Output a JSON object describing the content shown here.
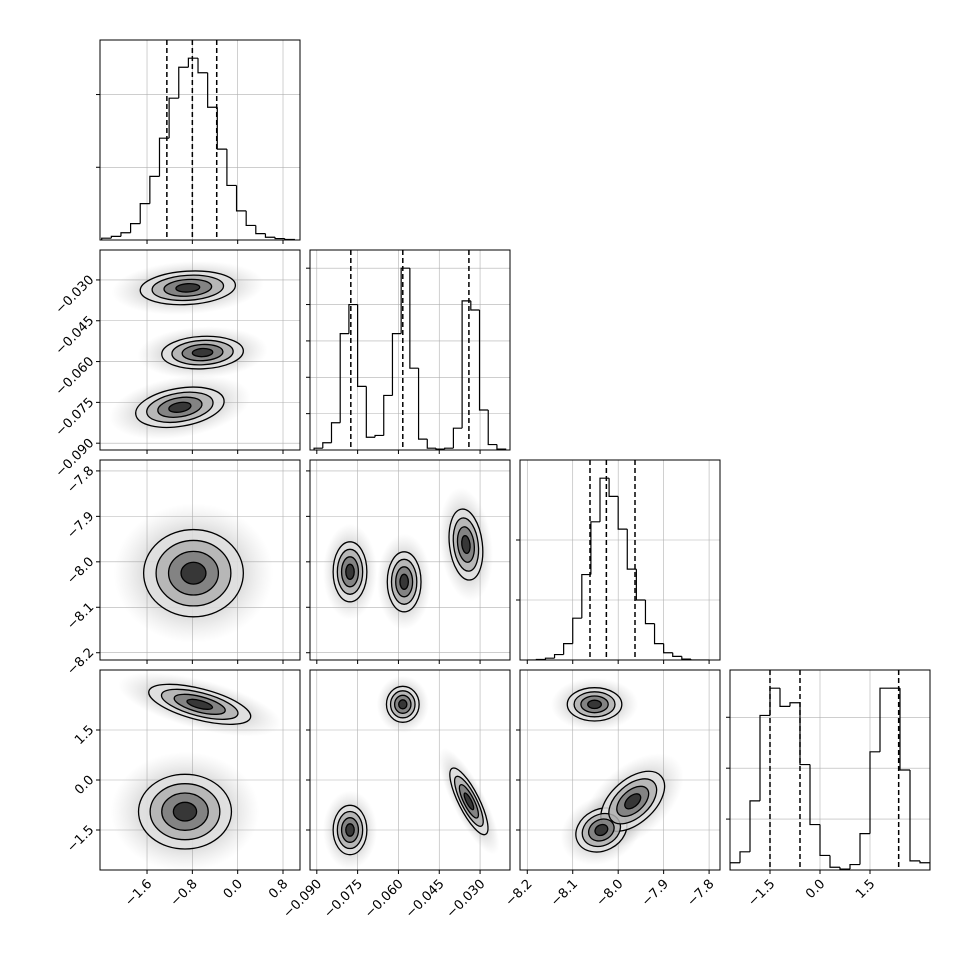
{
  "chart_data": {
    "type": "corner",
    "color": "#000000",
    "grid": true,
    "sigma_levels": [
      0.5,
      1,
      1.5,
      2
    ],
    "parameters": [
      {
        "lim": [
          -2.43,
          1.1
        ],
        "ticks": [
          {
            "value": -1.6,
            "label": "−1.6"
          },
          {
            "value": -0.8,
            "label": "−0.8"
          },
          {
            "value": 0,
            "label": "0.0"
          },
          0.8
        ]
      },
      {
        "lim": [
          -0.0925,
          -0.019
        ],
        "ticks": [
          {
            "value": -0.09,
            "label": "−0.090"
          },
          {
            "value": -0.075,
            "label": "−0.075"
          },
          {
            "value": -0.06,
            "label": "−0.060"
          },
          {
            "value": -0.045,
            "label": "−0.045"
          },
          {
            "value": -0.03,
            "label": "−0.030"
          }
        ]
      },
      {
        "lim": [
          -8.216,
          -7.776
        ],
        "ticks": [
          {
            "value": -8.2,
            "label": "−8.2"
          },
          {
            "value": -8.1,
            "label": "−8.1"
          },
          {
            "value": -8.0,
            "label": "−8.0"
          },
          {
            "value": -7.9,
            "label": "−7.9"
          },
          {
            "value": -7.8,
            "label": "−7.8"
          }
        ]
      },
      {
        "lim": [
          -2.7,
          3.3
        ],
        "ticks": [
          {
            "value": -1.5,
            "label": "−1.5"
          },
          {
            "value": 0,
            "label": "0.0"
          },
          1.5
        ]
      }
    ],
    "histograms": [
      {
        "bins": [
          -2.4,
          -2.23,
          -2.06,
          -1.89,
          -1.72,
          -1.55,
          -1.38,
          -1.21,
          -1.04,
          -0.87,
          -0.7,
          -0.53,
          -0.36,
          -0.19,
          -0.02,
          0.15,
          0.32,
          0.49,
          0.66,
          0.83,
          1.0
        ],
        "values": [
          0.01,
          0.02,
          0.04,
          0.09,
          0.2,
          0.35,
          0.56,
          0.78,
          0.95,
          1.0,
          0.92,
          0.73,
          0.5,
          0.3,
          0.16,
          0.08,
          0.035,
          0.015,
          0.008,
          0.003
        ],
        "ylim": [
          0,
          1.1
        ],
        "yticks": [
          0.4,
          0.8
        ],
        "quantiles": [
          -1.25,
          -0.8,
          -0.37
        ]
      },
      {
        "bins": [
          -0.091,
          -0.0878,
          -0.0846,
          -0.0814,
          -0.0782,
          -0.075,
          -0.0718,
          -0.0686,
          -0.0654,
          -0.0622,
          -0.059,
          -0.0558,
          -0.0526,
          -0.0494,
          -0.0462,
          -0.043,
          -0.0398,
          -0.0366,
          -0.0334,
          -0.0302,
          -0.027,
          -0.0238,
          -0.0206
        ],
        "values": [
          0.01,
          0.04,
          0.15,
          0.64,
          0.8,
          0.35,
          0.07,
          0.08,
          0.3,
          0.64,
          1.0,
          0.45,
          0.06,
          0.01,
          0.005,
          0.01,
          0.12,
          0.82,
          0.77,
          0.22,
          0.03,
          0.005
        ],
        "ylim": [
          0,
          1.1
        ],
        "yticks": [
          0.2,
          0.4,
          0.6,
          0.8,
          1.0
        ],
        "quantiles": [
          -0.0775,
          -0.0584,
          -0.0341
        ]
      },
      {
        "bins": [
          -8.2,
          -8.18,
          -8.16,
          -8.14,
          -8.12,
          -8.1,
          -8.08,
          -8.06,
          -8.04,
          -8.02,
          -8.0,
          -7.98,
          -7.96,
          -7.94,
          -7.92,
          -7.9,
          -7.88,
          -7.86,
          -7.84,
          -7.82,
          -7.8
        ],
        "values": [
          0.0,
          0.003,
          0.01,
          0.03,
          0.09,
          0.23,
          0.47,
          0.76,
          1.0,
          0.9,
          0.72,
          0.5,
          0.33,
          0.2,
          0.09,
          0.04,
          0.02,
          0.005,
          0.0,
          0.0
        ],
        "ylim": [
          0,
          1.1
        ],
        "yticks": [
          0.33,
          0.66
        ],
        "quantiles": [
          -8.062,
          -8.026,
          -7.963
        ]
      },
      {
        "bins": [
          -2.7,
          -2.4,
          -2.1,
          -1.8,
          -1.5,
          -1.2,
          -0.9,
          -0.6,
          -0.3,
          0.0,
          0.3,
          0.6,
          0.9,
          1.2,
          1.5,
          1.8,
          2.1,
          2.4,
          2.7,
          3.0,
          3.3
        ],
        "values": [
          0.04,
          0.1,
          0.38,
          0.85,
          1.0,
          0.9,
          0.92,
          0.58,
          0.25,
          0.08,
          0.015,
          0.005,
          0.03,
          0.2,
          0.65,
          1.0,
          1.0,
          0.55,
          0.05,
          0.04
        ],
        "ylim": [
          0,
          1.1
        ],
        "yticks": [
          0.28,
          0.56,
          0.84
        ],
        "quantiles": [
          -1.5,
          -0.6,
          2.36
        ]
      }
    ],
    "panels": [
      {
        "blobs": [
          {
            "x": -0.88,
            "y": -0.0329,
            "sx": 0.42,
            "sy": 0.0031,
            "rho": 0.15
          },
          {
            "x": -0.62,
            "y": -0.0567,
            "sx": 0.36,
            "sy": 0.003,
            "rho": 0.1
          },
          {
            "x": -1.02,
            "y": -0.0768,
            "sx": 0.39,
            "sy": 0.0037,
            "rho": 0.3
          }
        ]
      },
      {
        "blobs": [
          {
            "x": -0.78,
            "y": -8.025,
            "sx": 0.44,
            "sy": 0.048,
            "rho": 0
          }
        ]
      },
      {
        "blobs": [
          {
            "x": -0.0778,
            "y": -8.022,
            "sx": 0.0031,
            "sy": 0.033,
            "rho": 0
          },
          {
            "x": -0.0579,
            "y": -8.044,
            "sx": 0.0031,
            "sy": 0.033,
            "rho": 0
          },
          {
            "x": -0.0352,
            "y": -7.962,
            "sx": 0.0031,
            "sy": 0.039,
            "rho": -0.2
          }
        ]
      },
      {
        "blobs": [
          {
            "x": -0.67,
            "y": 2.27,
            "sx": 0.45,
            "sy": 0.3,
            "rho": -0.6
          },
          {
            "x": -0.93,
            "y": -0.95,
            "sx": 0.41,
            "sy": 0.56,
            "rho": 0
          }
        ]
      },
      {
        "blobs": [
          {
            "x": -0.0584,
            "y": 2.27,
            "sx": 0.003,
            "sy": 0.27,
            "rho": 0
          },
          {
            "x": -0.0778,
            "y": -1.5,
            "sx": 0.0031,
            "sy": 0.37,
            "rho": 0
          },
          {
            "x": -0.0341,
            "y": -0.64,
            "sx": 0.0035,
            "sy": 0.5,
            "rho": -0.8
          }
        ]
      },
      {
        "blobs": [
          {
            "x": -8.052,
            "y": 2.27,
            "sx": 0.03,
            "sy": 0.25,
            "rho": 0
          },
          {
            "x": -8.037,
            "y": -1.5,
            "sx": 0.028,
            "sy": 0.33,
            "rho": 0.2
          },
          {
            "x": -7.968,
            "y": -0.64,
            "sx": 0.035,
            "sy": 0.45,
            "rho": 0.5
          }
        ]
      }
    ]
  }
}
